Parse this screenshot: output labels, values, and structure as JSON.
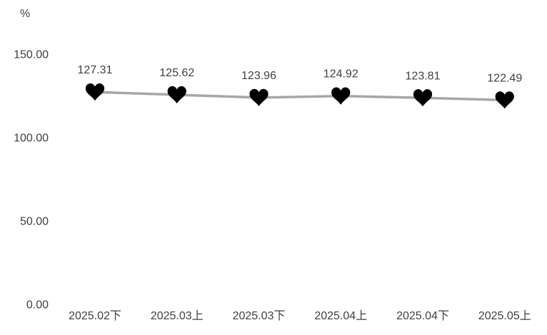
{
  "chart_data": {
    "type": "line",
    "unit_label": "%",
    "categories": [
      "2025.02下",
      "2025.03上",
      "2025.03下",
      "2025.04上",
      "2025.04下",
      "2025.05上"
    ],
    "series": [
      {
        "values": [
          127.31,
          125.62,
          123.96,
          124.92,
          123.81,
          122.49
        ],
        "data_labels": [
          "127.31",
          "125.62",
          "123.96",
          "124.92",
          "123.81",
          "122.49"
        ],
        "line_color": "#A6A6A6",
        "marker": "heart",
        "marker_color": "#000000"
      }
    ],
    "ylim": [
      0,
      150
    ],
    "yticks": [
      {
        "value": 150,
        "label": "150.00"
      },
      {
        "value": 100,
        "label": "100.00"
      },
      {
        "value": 50,
        "label": "50.00"
      },
      {
        "value": 0,
        "label": "0.00"
      }
    ],
    "grid": false,
    "legend": "none",
    "axis_lines": "none",
    "text_color": "#3F3F3F",
    "background": "#FFFFFF"
  }
}
